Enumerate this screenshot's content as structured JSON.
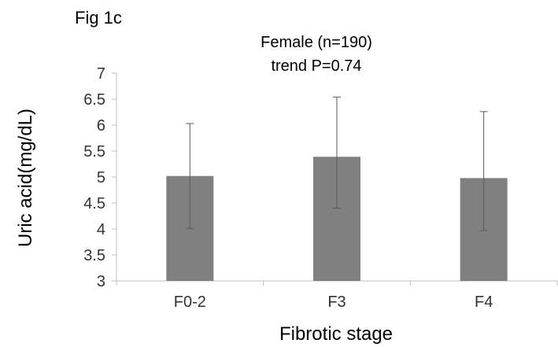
{
  "figure_label": "Fig 1c",
  "chart_data": {
    "type": "bar",
    "title": "Female (n=190)",
    "subtitle": "trend P=0.74",
    "xlabel": "Fibrotic stage",
    "ylabel": "Uric acid(mg/dL)",
    "categories": [
      "F0-2",
      "F3",
      "F4"
    ],
    "values": [
      5.02,
      5.39,
      4.98
    ],
    "error_low": [
      4.01,
      4.4,
      3.97
    ],
    "error_high": [
      6.03,
      6.54,
      6.26
    ],
    "ylim": [
      3,
      7
    ],
    "yticks": [
      "3",
      "3.5",
      "4",
      "4.5",
      "5",
      "5.5",
      "6",
      "6.5",
      "7"
    ],
    "bar_color": "#808080",
    "error_color": "#595959",
    "grid": false,
    "legend": "none"
  }
}
